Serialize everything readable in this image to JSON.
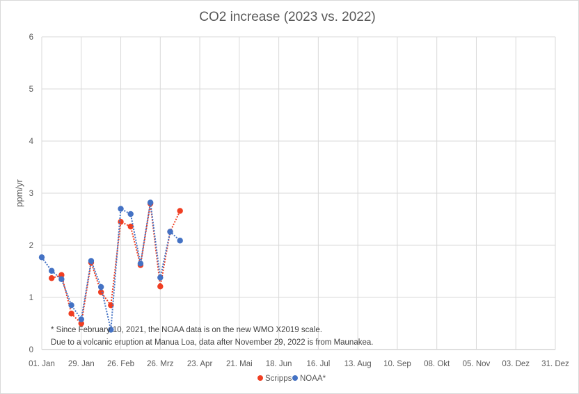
{
  "chart_data": {
    "type": "line",
    "title": "CO2 increase  (2023 vs. 2022)",
    "xlabel": "",
    "ylabel": "ppm/yr",
    "ylim": [
      0,
      6
    ],
    "yticks": [
      "0",
      "1",
      "2",
      "3",
      "4",
      "5",
      "6"
    ],
    "x_tick_labels": [
      "01. Jan",
      "29. Jan",
      "26. Feb",
      "26. Mrz",
      "23. Apr",
      "21. Mai",
      "18. Jun",
      "16. Jul",
      "13. Aug",
      "10. Sep",
      "08. Okt",
      "05. Nov",
      "03. Dez",
      "31. Dez"
    ],
    "grid": true,
    "legend_position": "bottom",
    "annotations": [
      "* Since February 10, 2021, the NOAA data is on the  new  WMO X2019 scale.",
      "Due to a volcanic eruption at Manua Loa, data after November  29, 2022 is from Maunakea."
    ],
    "series": [
      {
        "name": "Scripps",
        "color": "#f03e22",
        "x": [
          "2023-01-08",
          "2023-01-15",
          "2023-01-22",
          "2023-01-29",
          "2023-02-05",
          "2023-02-12",
          "2023-02-19",
          "2023-02-26",
          "2023-03-05",
          "2023-03-12",
          "2023-03-19",
          "2023-03-26",
          "2023-04-02",
          "2023-04-09"
        ],
        "values": [
          1.37,
          1.43,
          0.69,
          0.5,
          1.67,
          1.1,
          0.85,
          2.45,
          2.36,
          1.62,
          2.8,
          1.21,
          2.26,
          2.66
        ]
      },
      {
        "name": "NOAA*",
        "color": "#4472c4",
        "x": [
          "2023-01-01",
          "2023-01-08",
          "2023-01-15",
          "2023-01-22",
          "2023-01-29",
          "2023-02-05",
          "2023-02-12",
          "2023-02-19",
          "2023-02-26",
          "2023-03-05",
          "2023-03-12",
          "2023-03-19",
          "2023-03-26",
          "2023-04-02",
          "2023-04-09"
        ],
        "values": [
          1.77,
          1.51,
          1.35,
          0.85,
          0.58,
          1.7,
          1.2,
          0.38,
          2.7,
          2.6,
          1.65,
          2.82,
          1.38,
          2.26,
          2.09
        ]
      }
    ]
  }
}
